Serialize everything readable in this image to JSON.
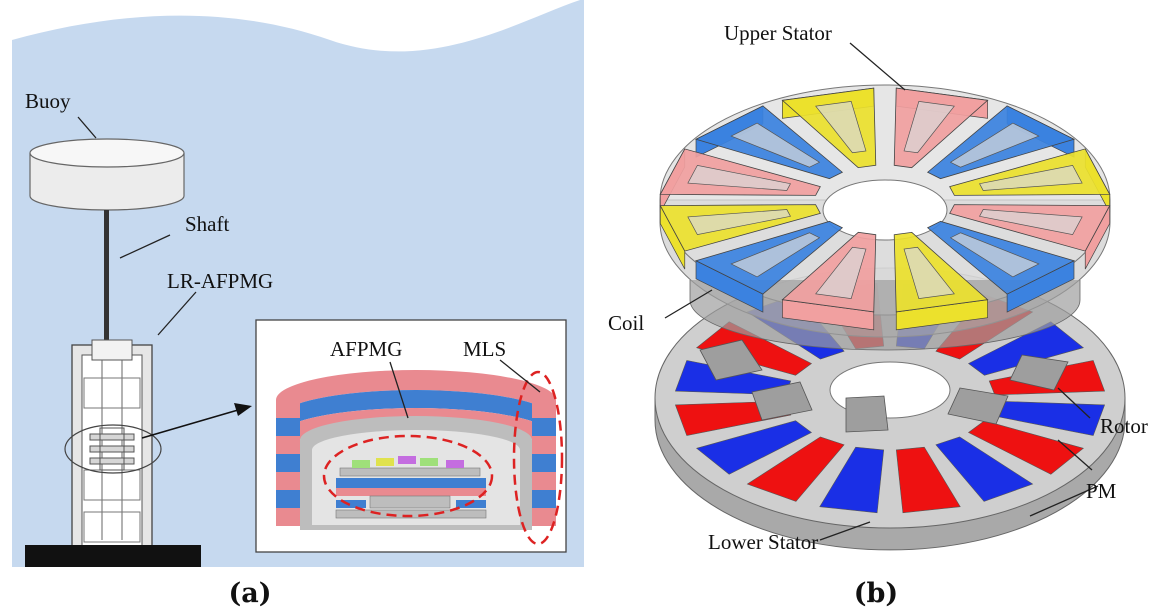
{
  "panel_a": {
    "caption": "(a)",
    "labels": {
      "buoy": "Buoy",
      "shaft": "Shaft",
      "generator": "LR-AFPMG",
      "afpmg": "AFPMG",
      "mls": "MLS"
    }
  },
  "panel_b": {
    "caption": "(b)",
    "labels": {
      "upper_stator": "Upper Stator",
      "coil": "Coil",
      "rotor": "Rotor",
      "pm": "PM",
      "lower_stator": "Lower Stator"
    }
  },
  "colors": {
    "water": "#c6d9ef",
    "magnet_red": "#ee1111",
    "magnet_blue": "#1a2fe6",
    "coil_pink": "#f1a0a0",
    "coil_blue": "#3b82e0",
    "coil_yellow": "#ece12c",
    "stator_gray": "#bdbdbd",
    "inset_pink": "#e98a90",
    "inset_blue": "#3f7fd1"
  }
}
